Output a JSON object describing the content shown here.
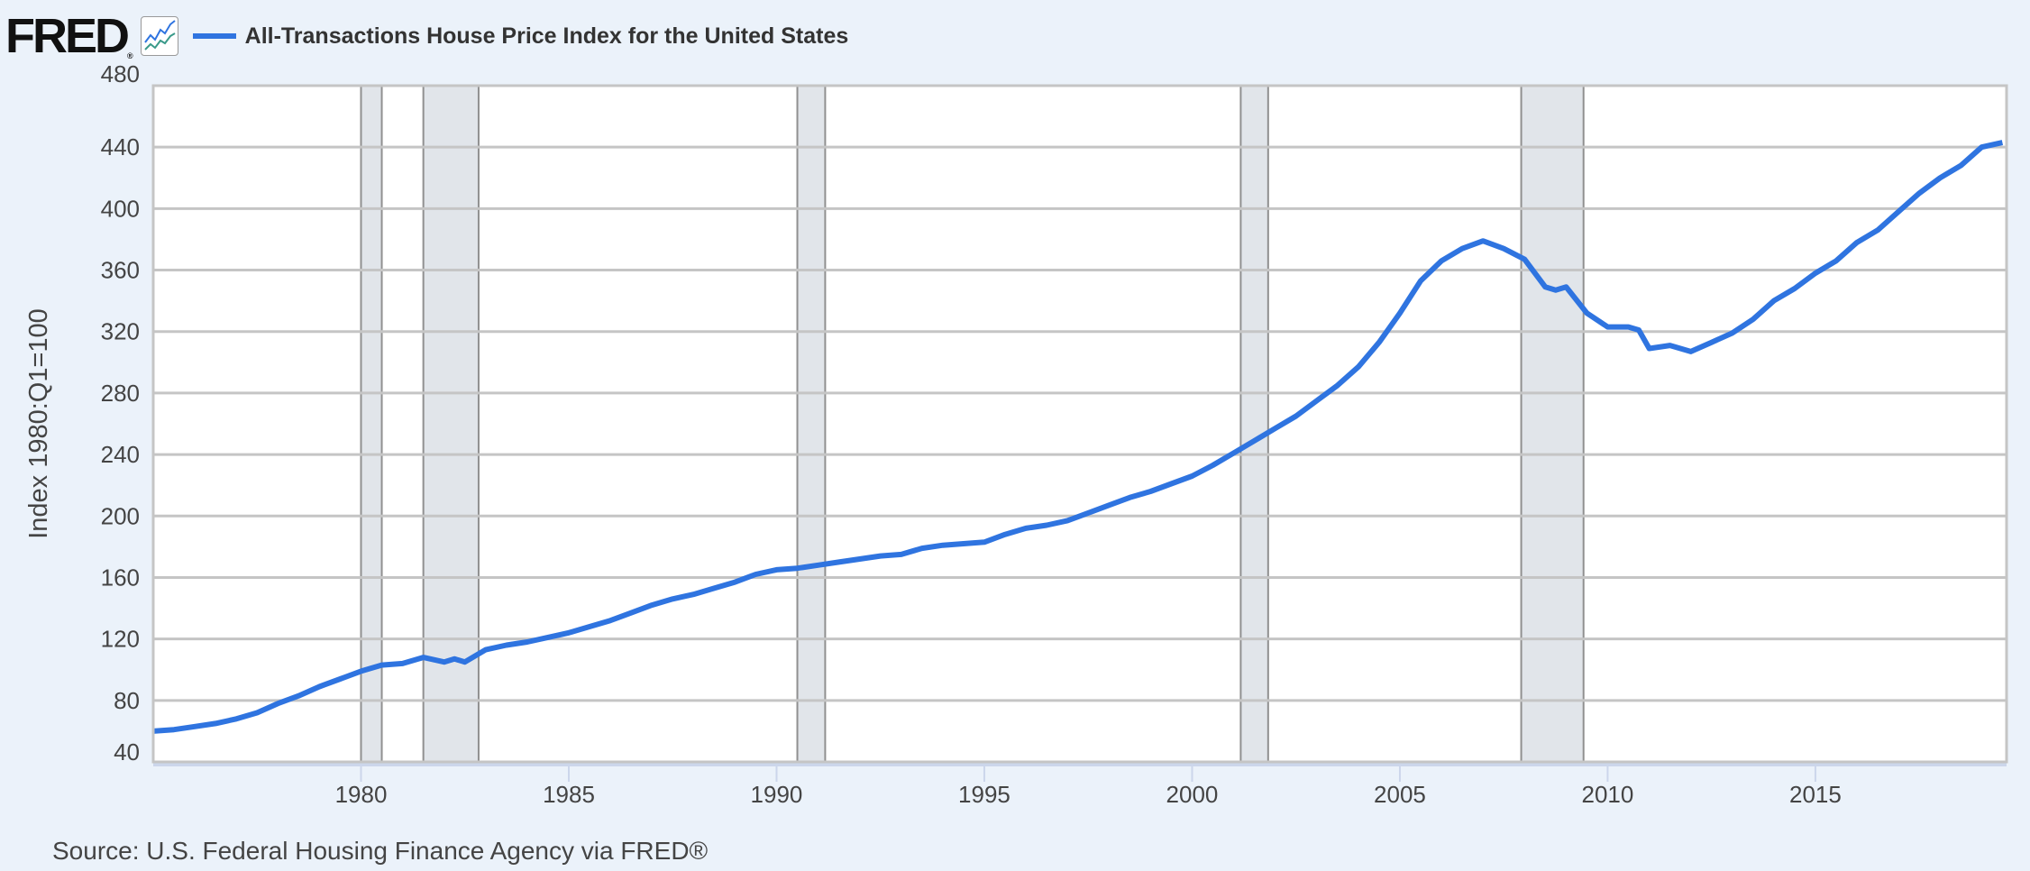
{
  "header": {
    "logo": "FRED",
    "legend_label": "All-Transactions House Price Index for the United States"
  },
  "source": "Source: U.S. Federal Housing Finance Agency via FRED®",
  "colors": {
    "series": "#2f74e0",
    "recession": "#e1e5ea",
    "grid": "#c5c5c5",
    "background": "#ebf2fa"
  },
  "chart_data": {
    "type": "line",
    "title": "All-Transactions House Price Index for the United States",
    "xlabel": "",
    "ylabel": "Index 1980:Q1=100",
    "xlim": [
      1975.0,
      2019.6
    ],
    "ylim": [
      40,
      480
    ],
    "yticks": [
      40,
      80,
      120,
      160,
      200,
      240,
      280,
      320,
      360,
      400,
      440,
      480
    ],
    "xticks": [
      1980,
      1985,
      1990,
      1995,
      2000,
      2005,
      2010,
      2015
    ],
    "grid": true,
    "legend": "top-left",
    "recessions": [
      [
        1980.0,
        1980.5
      ],
      [
        1981.5,
        1982.83
      ],
      [
        1990.5,
        1991.17
      ],
      [
        2001.17,
        2001.83
      ],
      [
        2007.92,
        2009.42
      ]
    ],
    "series": [
      {
        "name": "All-Transactions House Price Index for the United States",
        "x": [
          1975.0,
          1975.5,
          1976.0,
          1976.5,
          1977.0,
          1977.5,
          1978.0,
          1978.5,
          1979.0,
          1979.5,
          1980.0,
          1980.5,
          1981.0,
          1981.5,
          1982.0,
          1982.25,
          1982.5,
          1983.0,
          1983.5,
          1984.0,
          1984.5,
          1985.0,
          1985.5,
          1986.0,
          1986.5,
          1987.0,
          1987.5,
          1988.0,
          1988.5,
          1989.0,
          1989.5,
          1990.0,
          1990.5,
          1991.0,
          1991.5,
          1992.0,
          1992.5,
          1993.0,
          1993.5,
          1994.0,
          1994.5,
          1995.0,
          1995.5,
          1996.0,
          1996.5,
          1997.0,
          1997.5,
          1998.0,
          1998.5,
          1999.0,
          1999.5,
          2000.0,
          2000.5,
          2001.0,
          2001.5,
          2002.0,
          2002.5,
          2003.0,
          2003.5,
          2004.0,
          2004.5,
          2005.0,
          2005.5,
          2006.0,
          2006.5,
          2007.0,
          2007.5,
          2008.0,
          2008.5,
          2008.75,
          2009.0,
          2009.5,
          2010.0,
          2010.5,
          2010.75,
          2011.0,
          2011.5,
          2012.0,
          2012.5,
          2013.0,
          2013.5,
          2014.0,
          2014.5,
          2015.0,
          2015.5,
          2016.0,
          2016.5,
          2017.0,
          2017.5,
          2018.0,
          2018.5,
          2019.0,
          2019.5
        ],
        "y": [
          60,
          61,
          63,
          65,
          68,
          72,
          78,
          83,
          89,
          94,
          99,
          103,
          104,
          108,
          105,
          107,
          105,
          113,
          116,
          118,
          121,
          124,
          128,
          132,
          137,
          142,
          146,
          149,
          153,
          157,
          162,
          165,
          166,
          168,
          170,
          172,
          174,
          175,
          179,
          181,
          182,
          183,
          188,
          192,
          194,
          197,
          202,
          207,
          212,
          216,
          221,
          226,
          233,
          241,
          249,
          257,
          265,
          275,
          285,
          297,
          313,
          332,
          353,
          366,
          374,
          379,
          374,
          367,
          349,
          347,
          349,
          332,
          323,
          323,
          321,
          309,
          311,
          307,
          313,
          319,
          328,
          340,
          348,
          358,
          366,
          378,
          386,
          398,
          410,
          420,
          428,
          440,
          443
        ]
      }
    ]
  }
}
